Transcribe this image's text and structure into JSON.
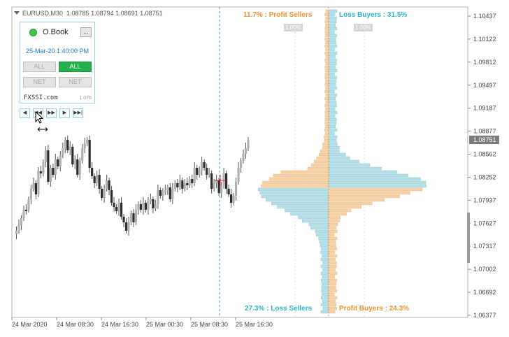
{
  "chart_header": {
    "symbol_label": "EURUSD,M30",
    "ohlc": "1.08785 1.08794 1.08691 1.08751"
  },
  "price_axis": {
    "ticks": [
      "1.10437",
      "1.10122",
      "1.09812",
      "1.09497",
      "1.09187",
      "1.08877",
      "1.08562",
      "1.08252",
      "1.07937",
      "1.07627",
      "1.07317",
      "1.07002",
      "1.06692",
      "1.06377"
    ],
    "current_price": "1.08751"
  },
  "time_axis": {
    "ticks": [
      "24 Mar 2020",
      "24 Mar 08:30",
      "24 Mar 16:30",
      "25 Mar 00:30",
      "25 Mar 08:30",
      "25 Mar 16:30"
    ]
  },
  "order_book_panel": {
    "title": "O.Book",
    "minimize_label": "...",
    "timestamp": "25-Mar-20 1:40:00 PM",
    "buttons": {
      "all_left": "ALL",
      "all_right": "ALL",
      "net_left": "NET",
      "net_right": "NET"
    },
    "brand": "FXSSI.com",
    "version": "1.076"
  },
  "nav_buttons": {
    "first": "◀",
    "prev": "◀◀",
    "next": "▶▶",
    "play": "▶",
    "last": "▶▶|"
  },
  "stats": {
    "profit_sellers": "11.7% : Profit Sellers",
    "loss_buyers": "Loss Buyers : 31.5%",
    "loss_sellers": "27.3% : Loss Sellers",
    "profit_buyers": "Profit Buyers : 24.3%",
    "scale_left": "1.00%",
    "scale_right": "1.00%"
  },
  "colors": {
    "orange": "#f0902a",
    "teal": "#2bb5c9",
    "bar_orange": "#f7d2a6",
    "bar_blue": "#b6dfe8"
  }
}
